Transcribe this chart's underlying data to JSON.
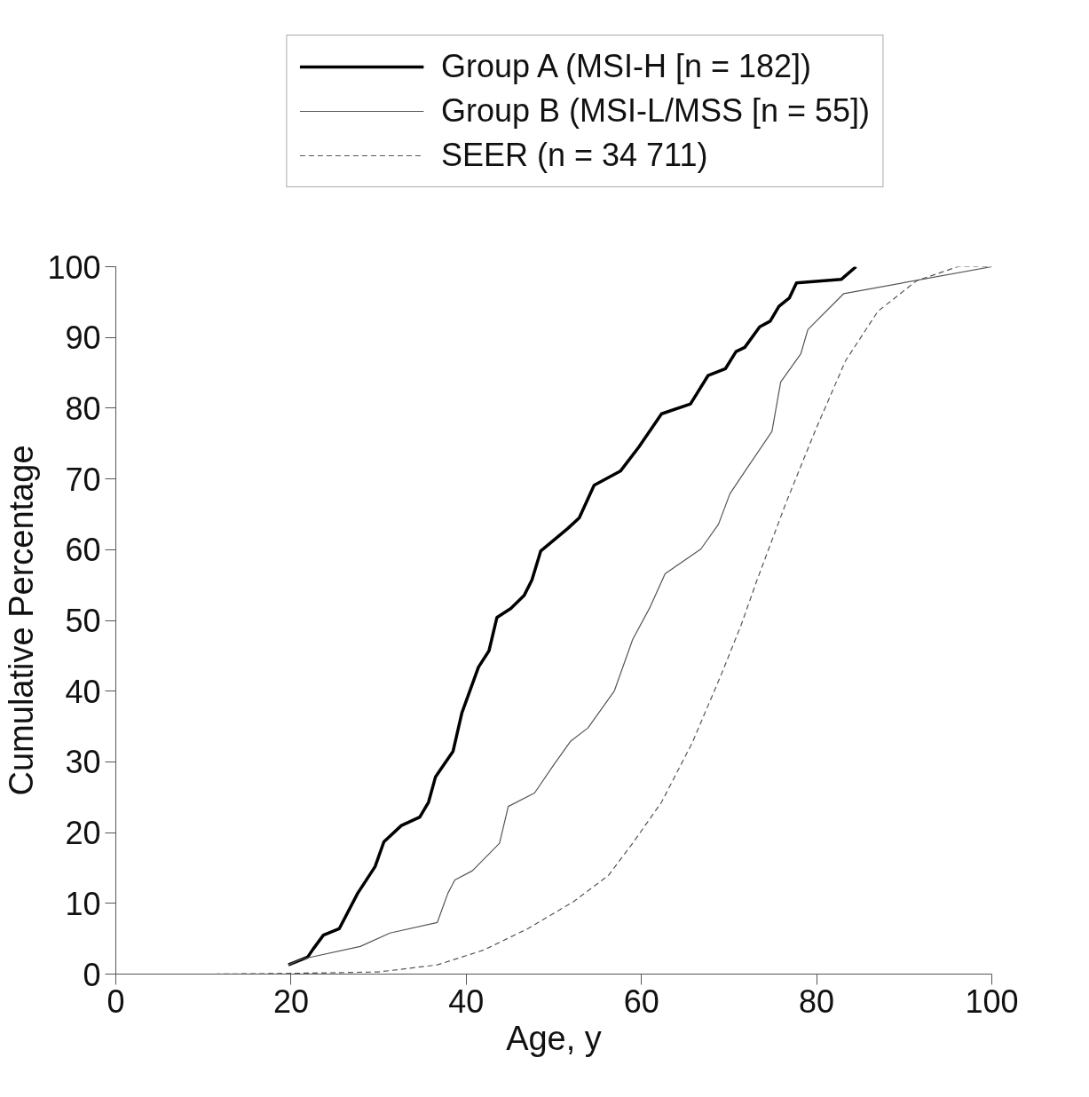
{
  "chart_data": {
    "type": "line",
    "xlabel": "Age, y",
    "ylabel": "Cumulative Percentage",
    "xlim": [
      0,
      100
    ],
    "ylim": [
      0,
      100
    ],
    "xticks": [
      0,
      20,
      40,
      60,
      80,
      100
    ],
    "yticks": [
      0,
      10,
      20,
      30,
      40,
      50,
      60,
      70,
      80,
      90,
      100
    ],
    "grid": false,
    "legend": "top",
    "marker": "none",
    "series": [
      {
        "name": "Group A (MSI-H [n = 182])",
        "color": "#000000",
        "line_style": "solid",
        "x": [
          19.7,
          21.9,
          22.5,
          23.7,
          25.5,
          27.6,
          29.6,
          30.6,
          32.6,
          34.7,
          35.7,
          36.5,
          38.5,
          39.5,
          41.4,
          42.6,
          43.5,
          45.1,
          46.6,
          47.5,
          48.5,
          51.6,
          52.9,
          54.6,
          57.6,
          59.7,
          62.3,
          65.6,
          67.6,
          69.6,
          70.8,
          71.8,
          73.5,
          74.7,
          75.7,
          76.9,
          77.7,
          82.8,
          84.5
        ],
        "values": [
          1.3,
          2.4,
          3.5,
          5.5,
          6.4,
          11.4,
          15.2,
          18.7,
          21,
          22.2,
          24.3,
          27.9,
          31.5,
          36.9,
          43.4,
          45.7,
          50.4,
          51.7,
          53.5,
          55.7,
          59.8,
          63,
          64.5,
          69.1,
          71.1,
          74.5,
          79.2,
          80.6,
          84.6,
          85.6,
          88,
          88.6,
          91.5,
          92.3,
          94.4,
          95.6,
          97.7,
          98.2,
          100
        ]
      },
      {
        "name": "Group B (MSI-L/MSS [n = 55])",
        "color": "#555555",
        "line_style": "solid",
        "x": [
          19.7,
          21.2,
          27.9,
          31.3,
          36.7,
          37.9,
          38.7,
          40.7,
          43.8,
          44.8,
          47.8,
          50,
          51.9,
          53.9,
          56.9,
          59,
          61,
          62.7,
          66.8,
          68.8,
          70.1,
          72.1,
          74.9,
          75.9,
          78.2,
          79,
          83.1,
          100
        ],
        "values": [
          1.3,
          2.1,
          3.9,
          5.8,
          7.3,
          11.4,
          13.3,
          14.6,
          18.5,
          23.7,
          25.6,
          29.6,
          32.9,
          34.8,
          40,
          47.3,
          51.9,
          56.6,
          60.1,
          63.6,
          67.9,
          71.6,
          76.7,
          83.7,
          87.7,
          91.1,
          96.2,
          100
        ]
      },
      {
        "name": "SEER (n = 34 711)",
        "color": "#555555",
        "line_style": "dashed",
        "x": [
          11.3,
          20,
          30,
          36.7,
          42,
          47,
          52.2,
          56.2,
          59,
          62.3,
          65.8,
          69.1,
          71.4,
          73.2,
          76.5,
          79.9,
          83.3,
          87,
          91.4,
          96.1,
          100
        ],
        "values": [
          0,
          0.1,
          0.3,
          1.3,
          3.4,
          6.4,
          10.2,
          13.9,
          18.5,
          24.3,
          32.7,
          42.3,
          49.4,
          55.7,
          66.6,
          77,
          86.7,
          93.7,
          98,
          100,
          100
        ]
      }
    ]
  }
}
